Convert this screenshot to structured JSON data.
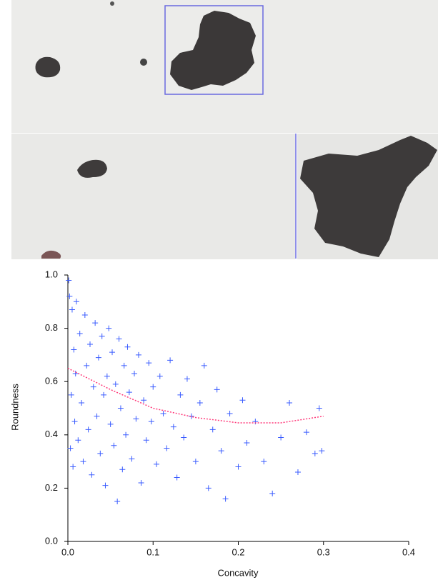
{
  "chart_data": {
    "type": "scatter",
    "x_label": "Concavity",
    "y_label": "Roundness",
    "xlim": [
      0,
      0.4
    ],
    "ylim": [
      0,
      1
    ],
    "xticks": [
      {
        "value": 0,
        "label": "0.0"
      },
      0.1,
      0.2,
      0.3,
      0.4
    ],
    "yticks": [
      {
        "value": 0,
        "label": "0.0"
      },
      0.2,
      0.4,
      0.6,
      0.8,
      {
        "value": 1,
        "label": "1.0"
      }
    ],
    "series": [
      {
        "type": "scatter",
        "color": "#3a5cff",
        "x": [
          0.001,
          0.002,
          0.003,
          0.004,
          0.005,
          0.006,
          0.007,
          0.008,
          0.009,
          0.01,
          0.012,
          0.014,
          0.016,
          0.018,
          0.02,
          0.022,
          0.024,
          0.026,
          0.028,
          0.03,
          0.032,
          0.034,
          0.036,
          0.038,
          0.04,
          0.042,
          0.044,
          0.046,
          0.048,
          0.05,
          0.052,
          0.054,
          0.056,
          0.058,
          0.06,
          0.062,
          0.064,
          0.066,
          0.068,
          0.07,
          0.072,
          0.075,
          0.078,
          0.08,
          0.083,
          0.086,
          0.089,
          0.092,
          0.095,
          0.098,
          0.1,
          0.104,
          0.108,
          0.112,
          0.116,
          0.12,
          0.124,
          0.128,
          0.132,
          0.136,
          0.14,
          0.145,
          0.15,
          0.155,
          0.16,
          0.165,
          0.17,
          0.175,
          0.18,
          0.185,
          0.19,
          0.2,
          0.205,
          0.21,
          0.22,
          0.23,
          0.24,
          0.25,
          0.26,
          0.27,
          0.28,
          0.29,
          0.295,
          0.298
        ],
        "values": [
          0.98,
          0.92,
          0.35,
          0.55,
          0.87,
          0.28,
          0.72,
          0.45,
          0.63,
          0.9,
          0.38,
          0.78,
          0.52,
          0.3,
          0.85,
          0.66,
          0.42,
          0.74,
          0.25,
          0.58,
          0.82,
          0.47,
          0.69,
          0.33,
          0.77,
          0.55,
          0.21,
          0.62,
          0.8,
          0.44,
          0.71,
          0.36,
          0.59,
          0.15,
          0.76,
          0.5,
          0.27,
          0.66,
          0.4,
          0.73,
          0.56,
          0.31,
          0.63,
          0.46,
          0.7,
          0.22,
          0.53,
          0.38,
          0.67,
          0.45,
          0.58,
          0.29,
          0.62,
          0.48,
          0.35,
          0.68,
          0.43,
          0.24,
          0.55,
          0.39,
          0.61,
          0.47,
          0.3,
          0.52,
          0.66,
          0.2,
          0.42,
          0.57,
          0.34,
          0.16,
          0.48,
          0.28,
          0.53,
          0.37,
          0.45,
          0.3,
          0.18,
          0.39,
          0.52,
          0.26,
          0.41,
          0.33,
          0.5,
          0.34
        ]
      },
      {
        "type": "line",
        "color": "#ff3a7a",
        "x": [
          0,
          0.05,
          0.1,
          0.15,
          0.2,
          0.25,
          0.3
        ],
        "values": [
          0.65,
          0.57,
          0.5,
          0.465,
          0.445,
          0.445,
          0.47
        ]
      }
    ]
  }
}
